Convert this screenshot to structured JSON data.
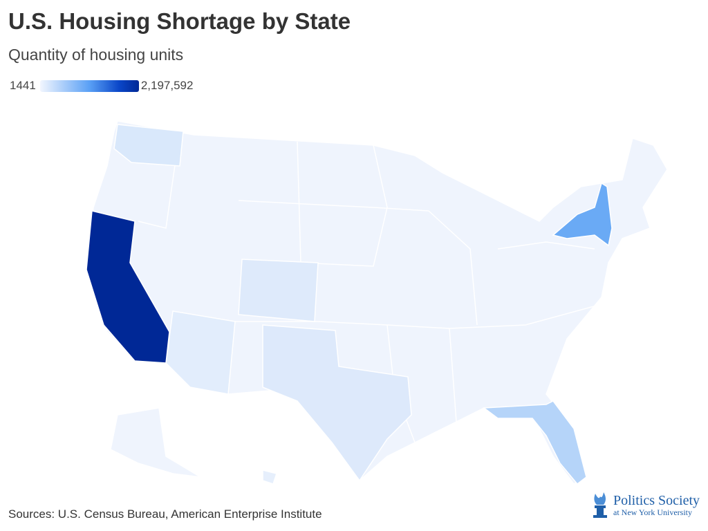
{
  "title": "U.S. Housing Shortage by State",
  "subtitle": "Quantity of housing units",
  "legend": {
    "min": "1441",
    "max": "2,197,592"
  },
  "source": "Sources: U.S. Census Bureau, American Enterprise Institute",
  "logo": {
    "line1": "Politics Society",
    "line2": "at New York University"
  },
  "colors": {
    "base": "#eff4fd",
    "max": "#002896"
  },
  "chart_data": {
    "type": "choropleth",
    "min": 1441,
    "max": 2197592,
    "shade_fraction": {
      "California": 1.0,
      "New York": 0.35,
      "Florida": 0.18,
      "Texas": 0.08,
      "Colorado": 0.07,
      "Washington": 0.08,
      "Arizona": 0.06,
      "Other": 0.02
    }
  }
}
